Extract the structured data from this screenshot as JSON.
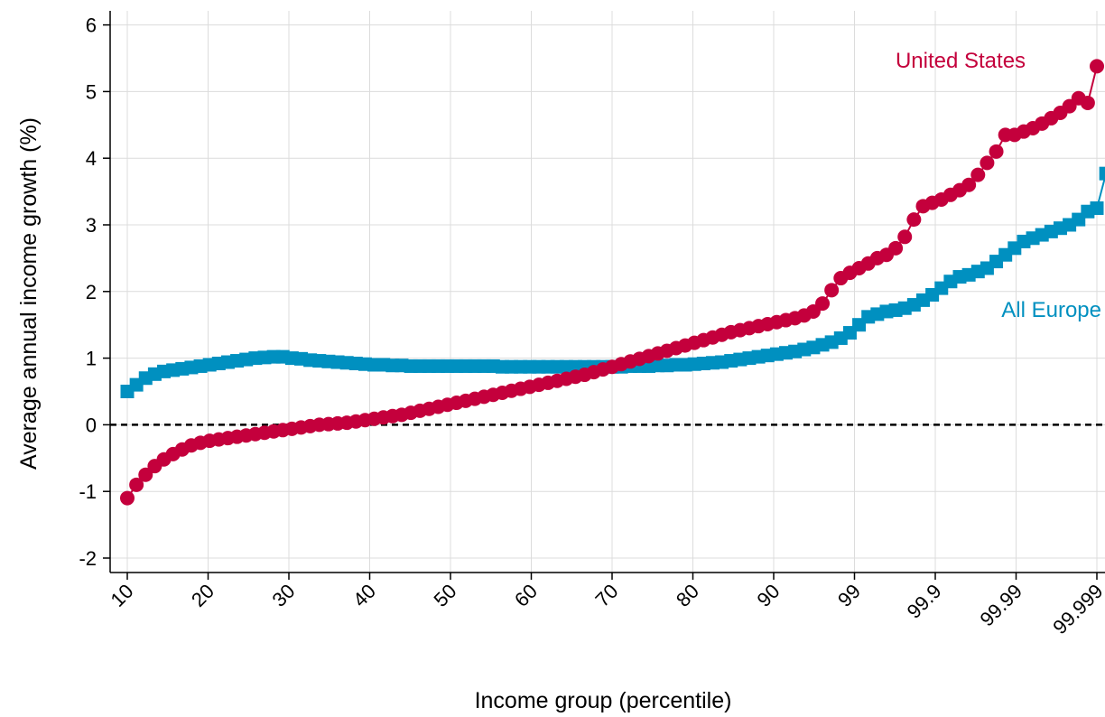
{
  "chart_data": {
    "type": "line",
    "title": "",
    "xlabel": "Income group (percentile)",
    "ylabel": "Average annual income growth (%)",
    "ylim": [
      -2,
      6
    ],
    "yticks": [
      -2,
      -1,
      0,
      1,
      2,
      3,
      4,
      5,
      6
    ],
    "xtick_labels": [
      "10",
      "20",
      "30",
      "40",
      "50",
      "60",
      "70",
      "80",
      "90",
      "99",
      "99.9",
      "99.99",
      "99.999"
    ],
    "grid": true,
    "reference_line": {
      "y": 0,
      "style": "dashed"
    },
    "x_scale": "uniform index over income groups p10 … p99.999",
    "series": [
      {
        "name": "United States",
        "color": "#c4003c",
        "marker": "circle",
        "values": [
          -1.1,
          -0.9,
          -0.75,
          -0.62,
          -0.52,
          -0.44,
          -0.37,
          -0.31,
          -0.27,
          -0.24,
          -0.22,
          -0.2,
          -0.18,
          -0.16,
          -0.14,
          -0.12,
          -0.1,
          -0.08,
          -0.06,
          -0.04,
          -0.02,
          0.0,
          0.01,
          0.02,
          0.03,
          0.05,
          0.07,
          0.09,
          0.11,
          0.13,
          0.15,
          0.18,
          0.21,
          0.24,
          0.27,
          0.3,
          0.33,
          0.36,
          0.39,
          0.42,
          0.45,
          0.48,
          0.51,
          0.54,
          0.57,
          0.6,
          0.63,
          0.66,
          0.69,
          0.72,
          0.75,
          0.79,
          0.83,
          0.87,
          0.91,
          0.95,
          0.99,
          1.03,
          1.07,
          1.11,
          1.15,
          1.19,
          1.23,
          1.27,
          1.31,
          1.35,
          1.39,
          1.42,
          1.45,
          1.48,
          1.51,
          1.54,
          1.57,
          1.6,
          1.64,
          1.7,
          1.82,
          2.02,
          2.2,
          2.28,
          2.35,
          2.42,
          2.5,
          2.55,
          2.65,
          2.82,
          3.08,
          3.28,
          3.33,
          3.38,
          3.45,
          3.52,
          3.6,
          3.75,
          3.93,
          4.1,
          4.35,
          4.35,
          4.4,
          4.45,
          4.52,
          4.6,
          4.68,
          4.78,
          4.9,
          4.83,
          5.38
        ]
      },
      {
        "name": "All Europe",
        "color": "#0090c0",
        "marker": "square",
        "values": [
          0.5,
          0.6,
          0.7,
          0.76,
          0.8,
          0.82,
          0.84,
          0.86,
          0.88,
          0.9,
          0.92,
          0.94,
          0.96,
          0.98,
          1.0,
          1.01,
          1.02,
          1.02,
          1.0,
          0.99,
          0.97,
          0.96,
          0.95,
          0.94,
          0.93,
          0.92,
          0.91,
          0.9,
          0.9,
          0.89,
          0.89,
          0.88,
          0.88,
          0.88,
          0.88,
          0.88,
          0.88,
          0.88,
          0.88,
          0.88,
          0.88,
          0.87,
          0.87,
          0.87,
          0.87,
          0.87,
          0.87,
          0.87,
          0.87,
          0.87,
          0.87,
          0.87,
          0.87,
          0.87,
          0.87,
          0.88,
          0.88,
          0.88,
          0.89,
          0.89,
          0.9,
          0.9,
          0.91,
          0.92,
          0.93,
          0.94,
          0.96,
          0.98,
          1.0,
          1.02,
          1.04,
          1.06,
          1.08,
          1.1,
          1.13,
          1.16,
          1.2,
          1.24,
          1.3,
          1.38,
          1.5,
          1.62,
          1.66,
          1.7,
          1.72,
          1.75,
          1.8,
          1.87,
          1.95,
          2.05,
          2.15,
          2.22,
          2.25,
          2.3,
          2.35,
          2.45,
          2.55,
          2.65,
          2.75,
          2.8,
          2.85,
          2.9,
          2.95,
          3.0,
          3.08,
          3.2,
          3.25,
          3.77
        ]
      }
    ]
  }
}
